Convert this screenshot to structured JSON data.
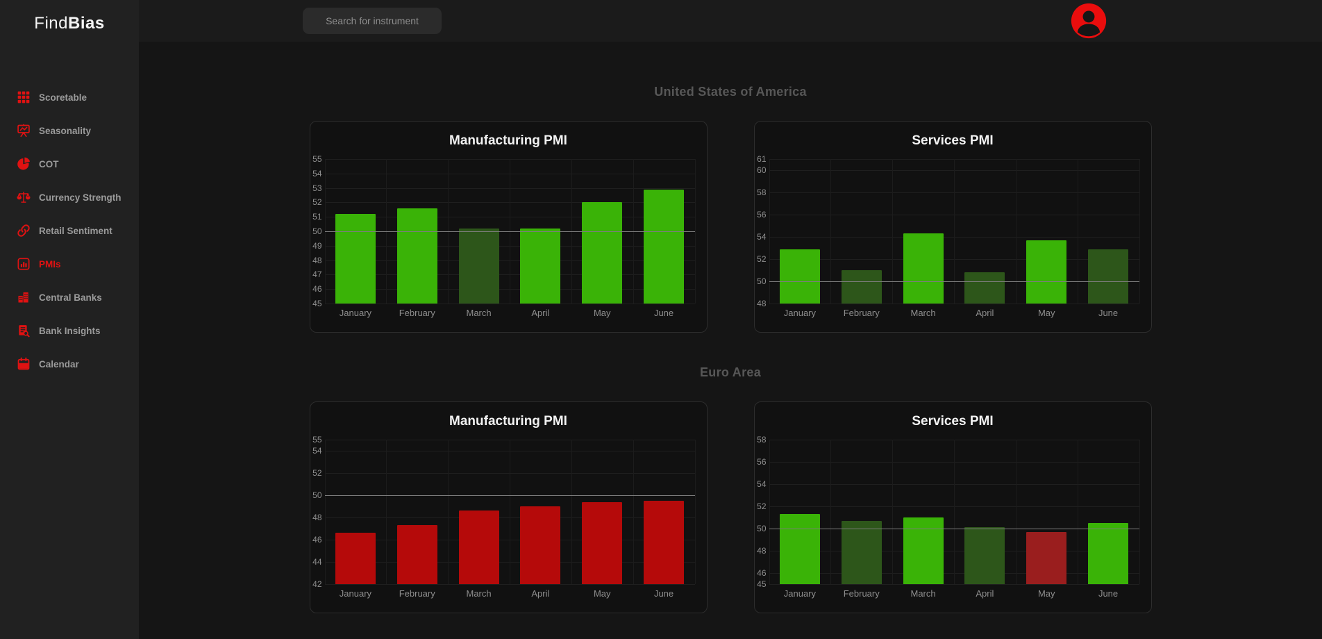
{
  "app": {
    "brand_regular": "Find",
    "brand_bold": "Bias"
  },
  "topbar": {
    "search_placeholder": "Search for instrument",
    "avatar_icon": "user-avatar-icon"
  },
  "sidebar": {
    "items": [
      {
        "label": "Scoretable",
        "icon": "grid-icon",
        "active": false
      },
      {
        "label": "Seasonality",
        "icon": "presentation-chart-icon",
        "active": false
      },
      {
        "label": "COT",
        "icon": "pie-chart-icon",
        "active": false
      },
      {
        "label": "Currency Strength",
        "icon": "scale-icon",
        "active": false
      },
      {
        "label": "Retail Sentiment",
        "icon": "link-icon",
        "active": false
      },
      {
        "label": "PMIs",
        "icon": "bar-chart-icon",
        "active": true
      },
      {
        "label": "Central Banks",
        "icon": "bank-building-icon",
        "active": false
      },
      {
        "label": "Bank Insights",
        "icon": "document-search-icon",
        "active": false
      },
      {
        "label": "Calendar",
        "icon": "calendar-icon",
        "active": false
      }
    ]
  },
  "palette": {
    "green": "#3ab307",
    "dark_green": "#2d561a",
    "red": "#b50a0a",
    "dark_red": "#9a1e1e",
    "accent_red": "#e01212",
    "reference_line": "#7d7d7d"
  },
  "sections": [
    {
      "heading": "United States of America",
      "chart_ids": [
        0,
        1
      ]
    },
    {
      "heading": "Euro Area",
      "chart_ids": [
        2,
        3
      ]
    }
  ],
  "chart_data": [
    {
      "id": "us-manufacturing",
      "type": "bar",
      "title": "Manufacturing PMI",
      "categories": [
        "January",
        "February",
        "March",
        "April",
        "May",
        "June"
      ],
      "values": [
        51.2,
        51.6,
        50.2,
        50.2,
        52.0,
        52.9
      ],
      "bar_colors": [
        "green",
        "green",
        "dark_green",
        "green",
        "green",
        "green"
      ],
      "yticks": [
        55,
        54,
        53,
        52,
        51,
        50,
        49,
        48,
        47,
        46,
        45
      ],
      "ylim": [
        45,
        55
      ],
      "reference_line": 50,
      "grid": true,
      "legend": "none"
    },
    {
      "id": "us-services",
      "type": "bar",
      "title": "Services PMI",
      "categories": [
        "January",
        "February",
        "March",
        "April",
        "May",
        "June"
      ],
      "values": [
        52.9,
        51.0,
        54.3,
        50.8,
        53.7,
        52.9
      ],
      "bar_colors": [
        "green",
        "dark_green",
        "green",
        "dark_green",
        "green",
        "dark_green"
      ],
      "yticks": [
        61,
        60,
        58,
        56,
        54,
        52,
        50,
        48
      ],
      "ylim": [
        48,
        61
      ],
      "reference_line": 50,
      "grid": true,
      "legend": "none"
    },
    {
      "id": "euro-manufacturing",
      "type": "bar",
      "title": "Manufacturing PMI",
      "categories": [
        "January",
        "February",
        "March",
        "April",
        "May",
        "June"
      ],
      "values": [
        46.6,
        47.3,
        48.6,
        49.0,
        49.4,
        49.5
      ],
      "bar_colors": [
        "red",
        "red",
        "red",
        "red",
        "red",
        "red"
      ],
      "yticks": [
        55,
        54,
        52,
        50,
        48,
        46,
        44,
        42
      ],
      "ylim": [
        42,
        55
      ],
      "reference_line": 50,
      "grid": true,
      "legend": "none"
    },
    {
      "id": "euro-services",
      "type": "bar",
      "title": "Services PMI",
      "categories": [
        "January",
        "February",
        "March",
        "April",
        "May",
        "June"
      ],
      "values": [
        51.3,
        50.7,
        51.0,
        50.1,
        49.7,
        50.5
      ],
      "bar_colors": [
        "green",
        "dark_green",
        "green",
        "dark_green",
        "dark_red",
        "green"
      ],
      "yticks": [
        58,
        56,
        54,
        52,
        50,
        48,
        46,
        45
      ],
      "ylim": [
        45,
        58
      ],
      "reference_line": 50,
      "grid": true,
      "legend": "none"
    }
  ]
}
